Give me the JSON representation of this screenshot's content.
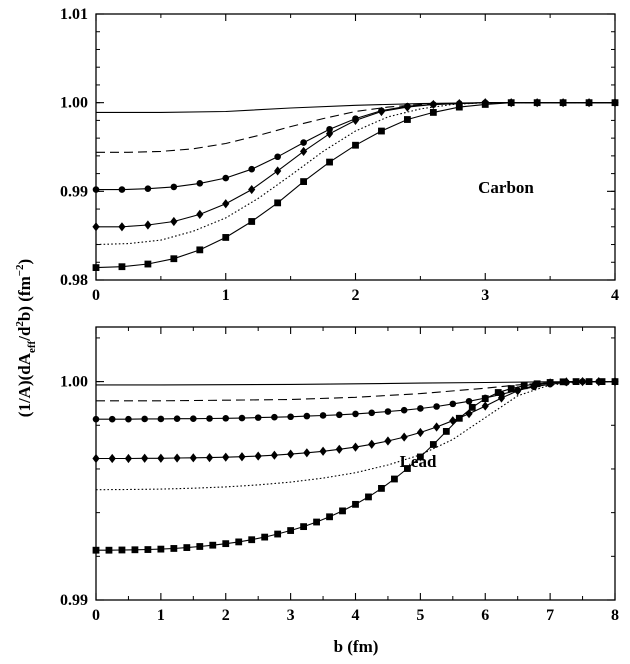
{
  "chart_data": [
    {
      "type": "line",
      "annotation": "Carbon",
      "xlim": [
        0,
        4
      ],
      "ylim": [
        0.98,
        1.01
      ],
      "x_ticks": [
        "0",
        "1",
        "2",
        "3",
        "4"
      ],
      "y_ticks": [
        "0.98",
        "0.99",
        "1.00",
        "1.01"
      ],
      "grid": false,
      "series": [
        {
          "style": "solid",
          "marker": "none",
          "x": [
            0,
            0.5,
            1,
            1.5,
            2,
            2.5,
            3,
            3.5,
            4
          ],
          "y": [
            0.9989,
            0.9989,
            0.999,
            0.9994,
            0.9997,
            0.9999,
            1.0,
            1.0,
            1.0
          ]
        },
        {
          "style": "dashed",
          "marker": "none",
          "x": [
            0,
            0.25,
            0.5,
            0.75,
            1,
            1.25,
            1.5,
            1.75,
            2,
            2.25,
            2.5,
            2.75,
            3,
            3.5,
            4
          ],
          "y": [
            0.9944,
            0.9944,
            0.9945,
            0.9948,
            0.9954,
            0.9963,
            0.9973,
            0.9982,
            0.999,
            0.9995,
            0.9998,
            0.9999,
            1.0,
            1.0,
            1.0
          ]
        },
        {
          "style": "solid",
          "marker": "circle",
          "x": [
            0,
            0.2,
            0.4,
            0.6,
            0.8,
            1.0,
            1.2,
            1.4,
            1.6,
            1.8,
            2.0,
            2.2,
            2.4,
            2.6,
            2.8,
            3.0,
            3.2,
            3.4,
            3.6,
            3.8,
            4.0
          ],
          "y": [
            0.9902,
            0.9902,
            0.9903,
            0.9905,
            0.9909,
            0.9915,
            0.9925,
            0.9939,
            0.9955,
            0.997,
            0.9982,
            0.9991,
            0.9996,
            0.9998,
            0.9999,
            1.0,
            1.0,
            1.0,
            1.0,
            1.0,
            1.0
          ]
        },
        {
          "style": "solid",
          "marker": "diamond",
          "x": [
            0,
            0.2,
            0.4,
            0.6,
            0.8,
            1.0,
            1.2,
            1.4,
            1.6,
            1.8,
            2.0,
            2.2,
            2.4,
            2.6,
            2.8,
            3.0,
            3.2,
            3.4,
            3.6,
            3.8,
            4.0
          ],
          "y": [
            0.986,
            0.986,
            0.9862,
            0.9866,
            0.9874,
            0.9886,
            0.9902,
            0.9923,
            0.9945,
            0.9965,
            0.998,
            0.999,
            0.9995,
            0.9998,
            0.9999,
            1.0,
            1.0,
            1.0,
            1.0,
            1.0,
            1.0
          ]
        },
        {
          "style": "dotted",
          "marker": "none",
          "x": [
            0,
            0.25,
            0.5,
            0.75,
            1,
            1.25,
            1.5,
            1.75,
            2,
            2.25,
            2.5,
            2.75,
            3,
            3.5,
            4
          ],
          "y": [
            0.984,
            0.9841,
            0.9845,
            0.9855,
            0.987,
            0.9892,
            0.9918,
            0.9945,
            0.9968,
            0.9984,
            0.9993,
            0.9998,
            1.0,
            1.0,
            1.0
          ]
        },
        {
          "style": "solid",
          "marker": "square",
          "x": [
            0,
            0.2,
            0.4,
            0.6,
            0.8,
            1.0,
            1.2,
            1.4,
            1.6,
            1.8,
            2.0,
            2.2,
            2.4,
            2.6,
            2.8,
            3.0,
            3.2,
            3.4,
            3.6,
            3.8,
            4.0
          ],
          "y": [
            0.9814,
            0.9815,
            0.9818,
            0.9824,
            0.9834,
            0.9848,
            0.9866,
            0.9887,
            0.9911,
            0.9933,
            0.9952,
            0.9968,
            0.9981,
            0.9989,
            0.9995,
            0.9998,
            1.0,
            1.0,
            1.0,
            1.0,
            1.0
          ]
        }
      ]
    },
    {
      "type": "line",
      "annotation": "Lead",
      "xlabel": "b (fm)",
      "xlim": [
        0,
        8
      ],
      "ylim": [
        0.99,
        1.0025
      ],
      "x_ticks": [
        "0",
        "1",
        "2",
        "3",
        "4",
        "5",
        "6",
        "7",
        "8"
      ],
      "y_ticks": [
        "0.99",
        "1.00"
      ],
      "grid": false,
      "series": [
        {
          "style": "solid",
          "marker": "none",
          "x": [
            0,
            1,
            2,
            3,
            4,
            5,
            6,
            7,
            8
          ],
          "y": [
            0.99985,
            0.99985,
            0.99986,
            0.99987,
            0.9999,
            0.99993,
            0.99996,
            0.99999,
            1.0
          ]
        },
        {
          "style": "dashed",
          "marker": "none",
          "x": [
            0,
            1,
            2,
            3,
            4,
            5,
            6,
            6.5,
            7,
            7.5,
            8
          ],
          "y": [
            0.99912,
            0.99912,
            0.99915,
            0.99918,
            0.99928,
            0.99945,
            0.9997,
            0.99985,
            0.99995,
            0.99999,
            1.0
          ]
        },
        {
          "style": "solid",
          "marker": "circle",
          "x": [
            0,
            0.25,
            0.5,
            0.75,
            1,
            1.25,
            1.5,
            1.75,
            2,
            2.25,
            2.5,
            2.75,
            3,
            3.25,
            3.5,
            3.75,
            4,
            4.25,
            4.5,
            4.75,
            5,
            5.25,
            5.5,
            5.75,
            6,
            6.25,
            6.5,
            6.75,
            7,
            7.25,
            7.5,
            7.75,
            8
          ],
          "y": [
            0.99828,
            0.99828,
            0.99828,
            0.99829,
            0.99829,
            0.9983,
            0.9983,
            0.99831,
            0.99832,
            0.99833,
            0.99835,
            0.99837,
            0.99839,
            0.99842,
            0.99845,
            0.99848,
            0.99852,
            0.99857,
            0.99863,
            0.99869,
            0.99877,
            0.99886,
            0.99898,
            0.9991,
            0.99925,
            0.99942,
            0.9996,
            0.99976,
            0.99988,
            0.99996,
            1.0,
            1.0,
            1.0
          ]
        },
        {
          "style": "solid",
          "marker": "diamond",
          "x": [
            0,
            0.25,
            0.5,
            0.75,
            1,
            1.25,
            1.5,
            1.75,
            2,
            2.25,
            2.5,
            2.75,
            3,
            3.25,
            3.5,
            3.75,
            4,
            4.25,
            4.5,
            4.75,
            5,
            5.25,
            5.5,
            5.75,
            6,
            6.25,
            6.5,
            6.75,
            7,
            7.25,
            7.5,
            7.75,
            8
          ],
          "y": [
            0.99648,
            0.99648,
            0.99648,
            0.99649,
            0.99649,
            0.9965,
            0.99651,
            0.99652,
            0.99654,
            0.99656,
            0.99659,
            0.99663,
            0.99668,
            0.99674,
            0.99681,
            0.9969,
            0.997,
            0.99713,
            0.99728,
            0.99746,
            0.99767,
            0.99792,
            0.99821,
            0.99853,
            0.99888,
            0.99925,
            0.99958,
            0.99982,
            0.99994,
            0.99999,
            1.0,
            1.0,
            1.0
          ]
        },
        {
          "style": "dotted",
          "marker": "none",
          "x": [
            0,
            0.5,
            1,
            1.5,
            2,
            2.5,
            3,
            3.5,
            4,
            4.5,
            5,
            5.5,
            6,
            6.5,
            7,
            7.5,
            8
          ],
          "y": [
            0.99505,
            0.99506,
            0.99508,
            0.99512,
            0.99518,
            0.99527,
            0.9954,
            0.99558,
            0.99583,
            0.99618,
            0.99665,
            0.99735,
            0.99835,
            0.99935,
            0.99985,
            0.99998,
            1.0
          ]
        },
        {
          "style": "solid",
          "marker": "square",
          "x": [
            0,
            0.2,
            0.4,
            0.6,
            0.8,
            1.0,
            1.2,
            1.4,
            1.6,
            1.8,
            2.0,
            2.2,
            2.4,
            2.6,
            2.8,
            3.0,
            3.2,
            3.4,
            3.6,
            3.8,
            4.0,
            4.2,
            4.4,
            4.6,
            4.8,
            5.0,
            5.2,
            5.4,
            5.6,
            5.8,
            6.0,
            6.2,
            6.4,
            6.6,
            6.8,
            7.0,
            7.2,
            7.4,
            7.6,
            7.8,
            8.0
          ],
          "y": [
            0.99228,
            0.99228,
            0.99229,
            0.9923,
            0.99231,
            0.99233,
            0.99236,
            0.9924,
            0.99245,
            0.99251,
            0.99258,
            0.99266,
            0.99276,
            0.99288,
            0.99302,
            0.99318,
            0.99336,
            0.99357,
            0.99381,
            0.99408,
            0.99438,
            0.99472,
            0.99511,
            0.99554,
            0.99602,
            0.99655,
            0.99712,
            0.99772,
            0.99832,
            0.99882,
            0.99922,
            0.9995,
            0.99968,
            0.99981,
            0.9999,
            0.99996,
            0.99999,
            1.0,
            1.0,
            1.0,
            1.0
          ]
        }
      ]
    }
  ],
  "shared_ylabel": {
    "prefix": "(1/A)(dA",
    "sub": "eff",
    "mid1": "/d",
    "sup": "2",
    "mid2": "b) (fm",
    "sup2": "−2",
    "suffix": ")"
  }
}
